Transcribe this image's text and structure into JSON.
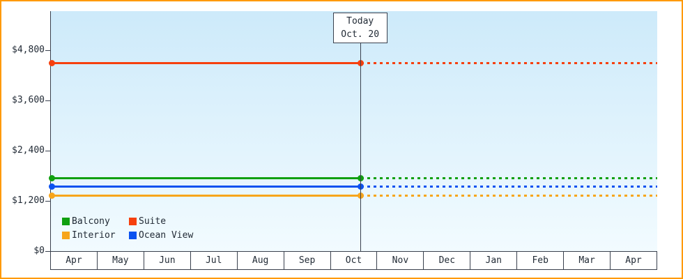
{
  "today_box": {
    "line1": "Today",
    "line2": "Oct. 20"
  },
  "legend_order": [
    "Balcony",
    "Suite",
    "Interior",
    "Ocean View"
  ],
  "colors": {
    "frame_border": "#ff9900",
    "axis": "#39404d",
    "text": "#222b36",
    "plot_bg_top": "#cdeafa",
    "plot_bg_bottom": "#f2fbff"
  },
  "chart_data": {
    "type": "line",
    "title": "",
    "x": [
      "Apr",
      "May",
      "Jun",
      "Jul",
      "Aug",
      "Sep",
      "Oct",
      "Nov",
      "Dec",
      "Jan",
      "Feb",
      "Mar",
      "Apr"
    ],
    "y_ticks": [
      0,
      1200,
      2400,
      3600,
      4800
    ],
    "y_tick_labels": [
      "$0",
      "$1,200",
      "$2,400",
      "$3,600",
      "$4,800"
    ],
    "ylim": [
      0,
      5700
    ],
    "grid": false,
    "legend_position": "bottom-left",
    "annotation": {
      "label1": "Today",
      "label2": "Oct. 20",
      "month": "Oct",
      "day": 20,
      "month_index": 6,
      "day_fraction": 0.645
    },
    "line_style": {
      "before_today": "solid",
      "after_today": "dotted"
    },
    "series": [
      {
        "name": "Suite",
        "color": "#f6400e",
        "constant_value": 4500
      },
      {
        "name": "Balcony",
        "color": "#10a010",
        "constant_value": 1750
      },
      {
        "name": "Ocean View",
        "color": "#0b52f0",
        "constant_value": 1550
      },
      {
        "name": "Interior",
        "color": "#f7a51b",
        "constant_value": 1330
      }
    ]
  }
}
